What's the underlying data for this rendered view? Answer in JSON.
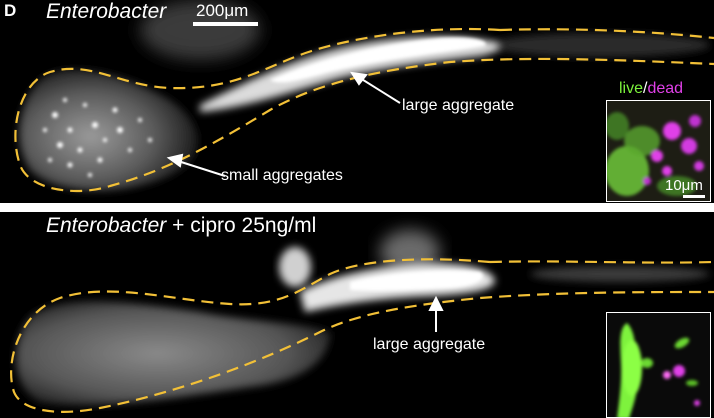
{
  "panel_letter": "D",
  "top_panel": {
    "title": "Enterobacter",
    "scale_bar": "200μm",
    "annotations": {
      "large_aggregate": "large aggregate",
      "small_aggregates": "small aggregates"
    },
    "inset": {
      "legend_live": "live",
      "legend_sep": "/",
      "legend_dead": "dead",
      "scale_bar": "10μm"
    }
  },
  "bottom_panel": {
    "title_species": "Enterobacter",
    "title_treatment": "+ cipro 25ng/ml",
    "annotations": {
      "large_aggregate": "large aggregate"
    }
  },
  "colors": {
    "gut_outline": "#f2c037",
    "live_stain": "#7cf23c",
    "dead_stain": "#e040e8",
    "background": "#000000",
    "annotation": "#ffffff"
  }
}
